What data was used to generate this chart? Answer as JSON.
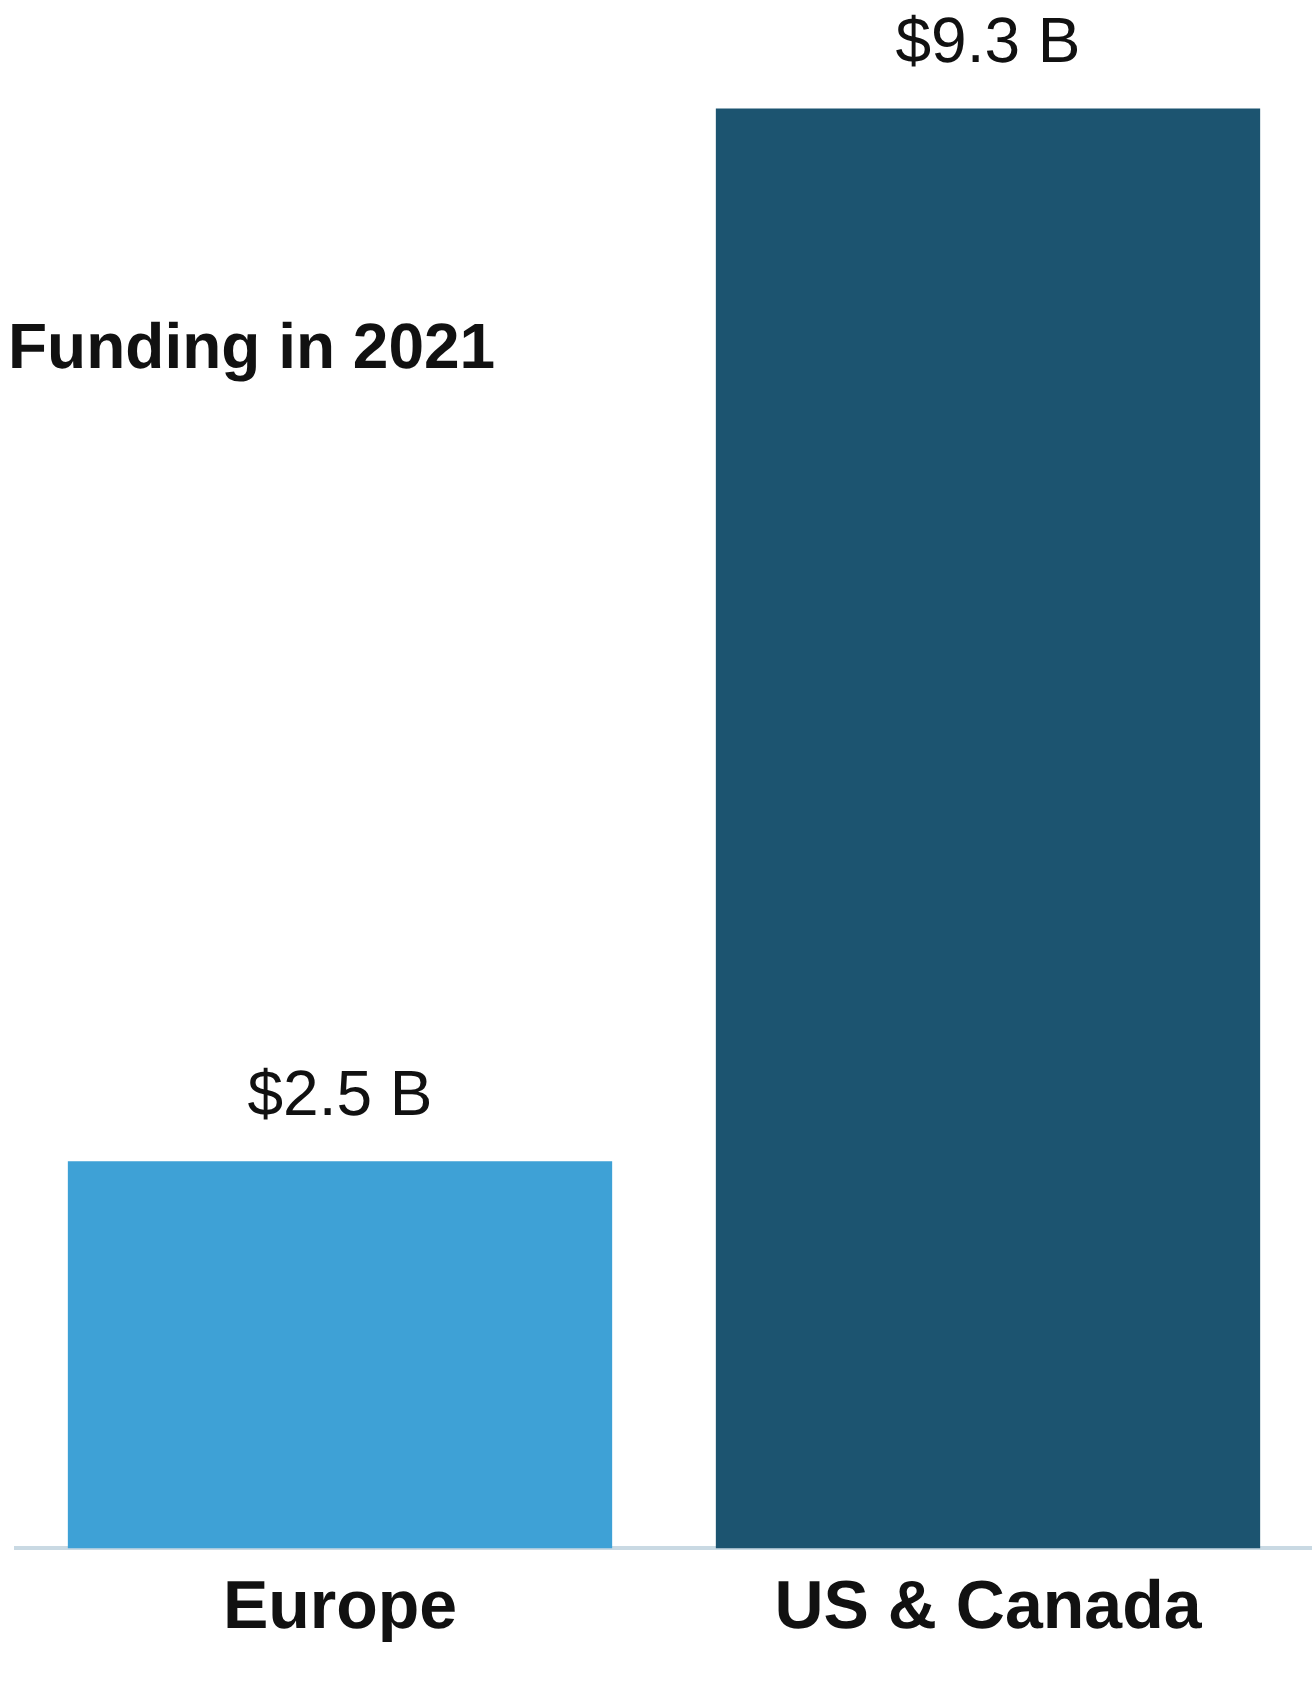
{
  "chart_data": {
    "type": "bar",
    "title": "Funding in 2021",
    "categories": [
      "Europe",
      "US & Canada"
    ],
    "values": [
      2.5,
      9.3
    ],
    "colors": [
      "#3ea1d6",
      "#1c5470"
    ],
    "value_labels": [
      "$2.5 B",
      "$9.3 B"
    ],
    "tick_labels": "x",
    "grid": false,
    "legend": false
  }
}
